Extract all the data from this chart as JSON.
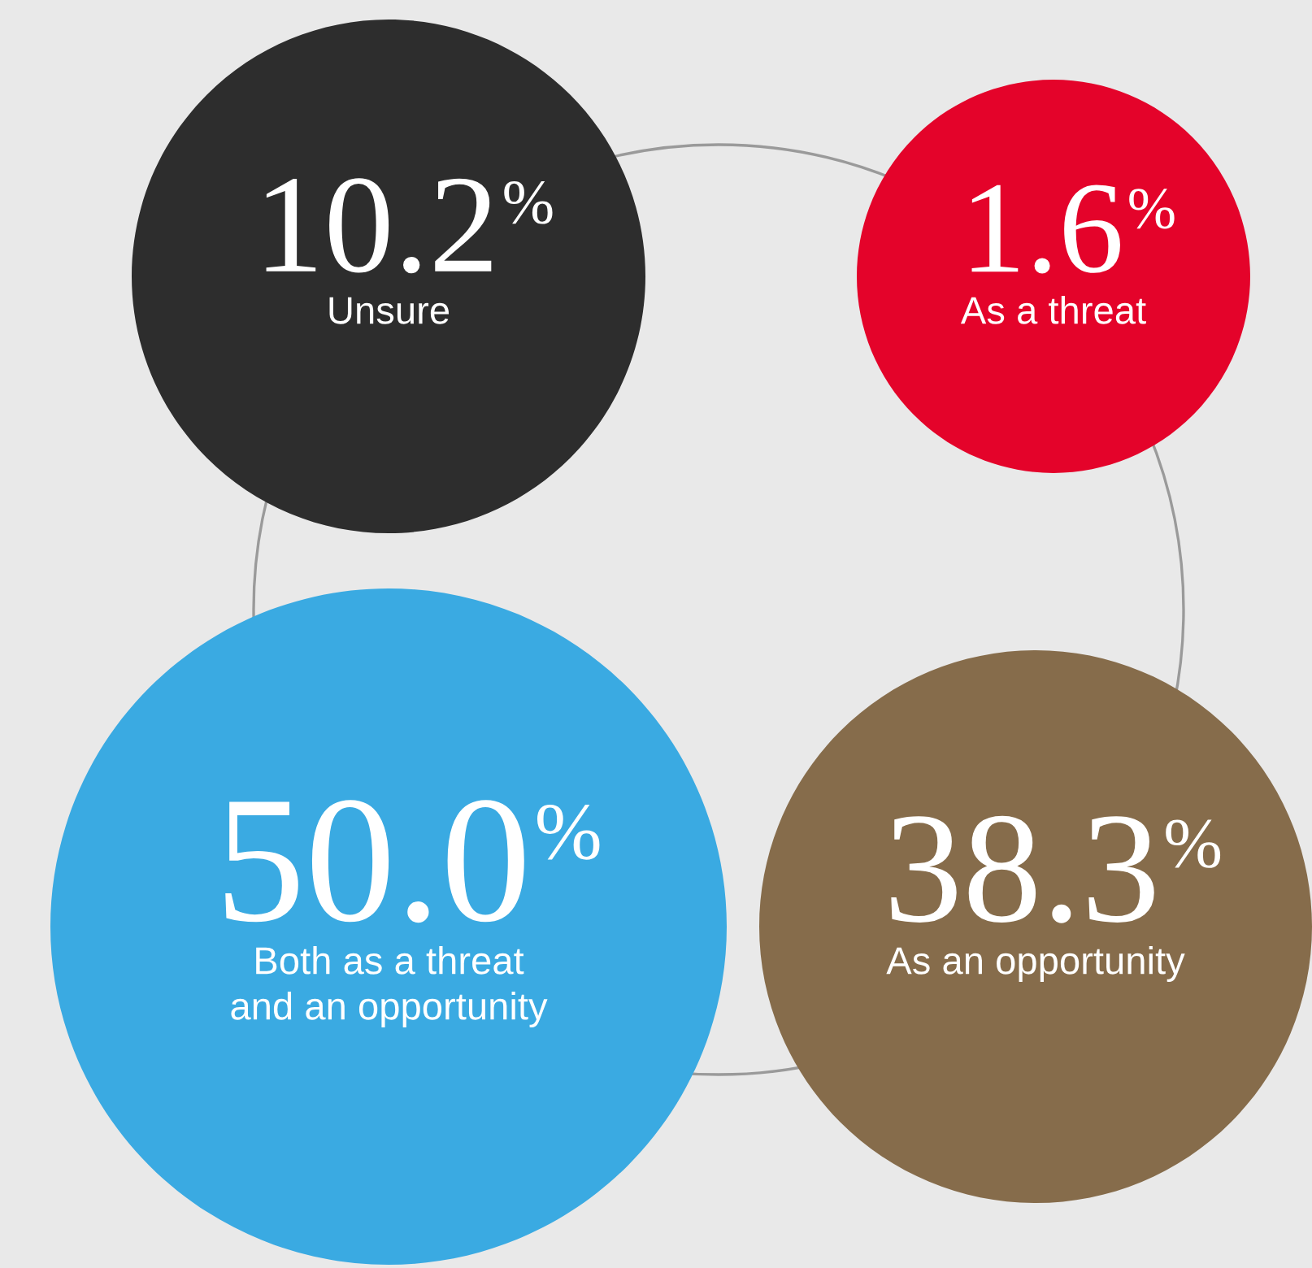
{
  "chart_data": {
    "type": "other",
    "categories": [
      "Unsure",
      "As a threat",
      "Both as a threat\nand an opportunity",
      "As an opportunity"
    ],
    "values": [
      10.2,
      1.6,
      50.0,
      38.3
    ],
    "value_labels": [
      "10.2%",
      "1.6%",
      "50.0%",
      "38.3%"
    ],
    "colors": [
      "#2d2d2d",
      "#e4032a",
      "#3aaae2",
      "#866c4b"
    ]
  }
}
